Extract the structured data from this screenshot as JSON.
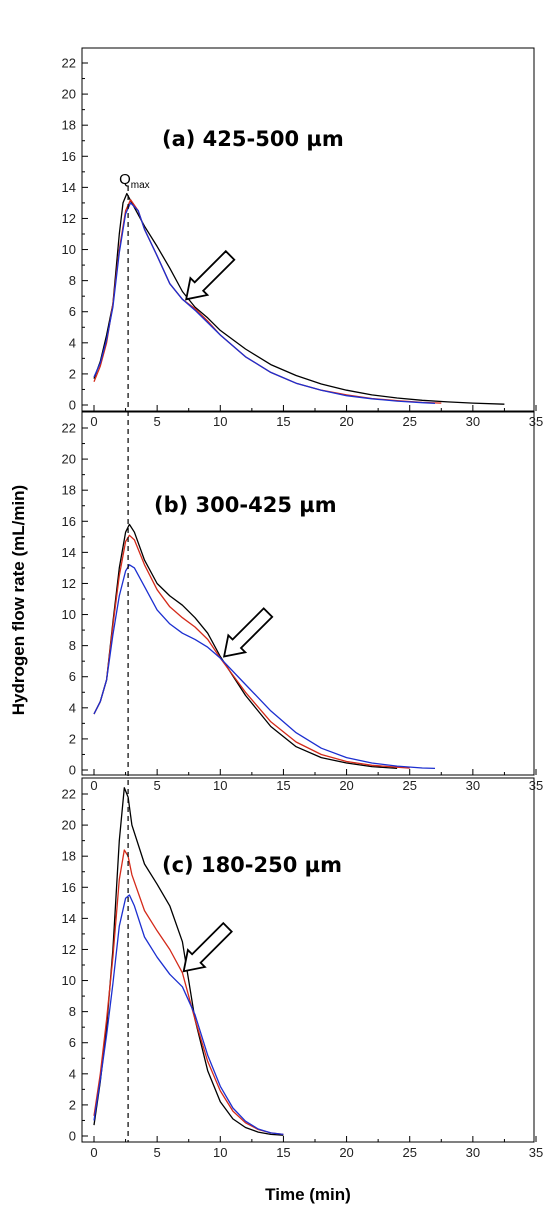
{
  "chart_data": {
    "type": "line",
    "xlabel": "Time (min)",
    "ylabel": "Hydrogen flow  rate (mL/min)",
    "colors": {
      "black": "#000000",
      "red": "#d42a1a",
      "blue": "#1c2fd0"
    },
    "annotation": {
      "label": "Q",
      "subscript": "max",
      "x": 2.7
    },
    "panels": [
      {
        "title": "(a) 425-500 µm",
        "xlim": [
          0,
          35
        ],
        "ylim": [
          0,
          22
        ],
        "xticks": [
          0,
          5,
          10,
          15,
          20,
          25,
          30,
          35
        ],
        "yticks": [
          0,
          2,
          4,
          6,
          8,
          10,
          12,
          14,
          16,
          18,
          20,
          22
        ],
        "arrow_at": [
          7.3,
          6.8
        ],
        "series": [
          {
            "color": "black",
            "points": [
              [
                0,
                1.7
              ],
              [
                0.5,
                2.8
              ],
              [
                1,
                4.5
              ],
              [
                1.5,
                6.5
              ],
              [
                2,
                11
              ],
              [
                2.3,
                13
              ],
              [
                2.6,
                13.6
              ],
              [
                3,
                13
              ],
              [
                4,
                11.5
              ],
              [
                5,
                10.2
              ],
              [
                6,
                8.8
              ],
              [
                7,
                7.3
              ],
              [
                8,
                6.3
              ],
              [
                9,
                5.6
              ],
              [
                10,
                4.8
              ],
              [
                12,
                3.6
              ],
              [
                14,
                2.6
              ],
              [
                16,
                1.9
              ],
              [
                18,
                1.35
              ],
              [
                20,
                0.95
              ],
              [
                22,
                0.65
              ],
              [
                24,
                0.45
              ],
              [
                26,
                0.3
              ],
              [
                28,
                0.2
              ],
              [
                30,
                0.12
              ],
              [
                32.5,
                0.05
              ]
            ]
          },
          {
            "color": "red",
            "points": [
              [
                0,
                1.5
              ],
              [
                0.5,
                2.5
              ],
              [
                1,
                4
              ],
              [
                1.5,
                6.5
              ],
              [
                2,
                10
              ],
              [
                2.5,
                12.5
              ],
              [
                2.9,
                13.2
              ],
              [
                3.5,
                12.5
              ],
              [
                4,
                11.3
              ],
              [
                5,
                9.6
              ],
              [
                6,
                7.8
              ],
              [
                7,
                6.8
              ],
              [
                8,
                6.2
              ],
              [
                9,
                5.4
              ],
              [
                10,
                4.5
              ],
              [
                12,
                3.1
              ],
              [
                14,
                2.1
              ],
              [
                16,
                1.4
              ],
              [
                18,
                0.95
              ],
              [
                20,
                0.65
              ],
              [
                22,
                0.42
              ],
              [
                24,
                0.28
              ],
              [
                26,
                0.17
              ],
              [
                27.5,
                0.12
              ]
            ]
          },
          {
            "color": "blue",
            "points": [
              [
                0,
                1.8
              ],
              [
                0.5,
                2.7
              ],
              [
                1,
                4.2
              ],
              [
                1.5,
                6.3
              ],
              [
                2,
                9.8
              ],
              [
                2.5,
                12.3
              ],
              [
                2.9,
                13
              ],
              [
                3.5,
                12.5
              ],
              [
                4,
                11.3
              ],
              [
                5,
                9.6
              ],
              [
                6,
                7.8
              ],
              [
                7,
                6.8
              ],
              [
                8,
                6.1
              ],
              [
                9,
                5.3
              ],
              [
                10,
                4.5
              ],
              [
                12,
                3.1
              ],
              [
                14,
                2.1
              ],
              [
                16,
                1.4
              ],
              [
                18,
                0.95
              ],
              [
                20,
                0.6
              ],
              [
                22,
                0.4
              ],
              [
                24,
                0.25
              ],
              [
                26,
                0.15
              ],
              [
                27,
                0.1
              ]
            ]
          }
        ]
      },
      {
        "title": "(b) 300-425 µm",
        "xlim": [
          0,
          35
        ],
        "ylim": [
          0,
          22
        ],
        "xticks": [
          0,
          5,
          10,
          15,
          20,
          25,
          30,
          35
        ],
        "yticks": [
          0,
          2,
          4,
          6,
          8,
          10,
          12,
          14,
          16,
          18,
          20,
          22
        ],
        "arrow_at": [
          10.3,
          7.3
        ],
        "series": [
          {
            "color": "black",
            "points": [
              [
                0,
                3.6
              ],
              [
                0.5,
                4.4
              ],
              [
                1,
                5.8
              ],
              [
                1.5,
                9.5
              ],
              [
                2,
                13
              ],
              [
                2.5,
                15.3
              ],
              [
                2.8,
                15.8
              ],
              [
                3.2,
                15.3
              ],
              [
                4,
                13.5
              ],
              [
                5,
                12
              ],
              [
                6,
                11.2
              ],
              [
                7,
                10.6
              ],
              [
                8,
                9.8
              ],
              [
                9,
                8.8
              ],
              [
                10,
                7.3
              ],
              [
                12,
                4.8
              ],
              [
                14,
                2.8
              ],
              [
                16,
                1.5
              ],
              [
                18,
                0.8
              ],
              [
                20,
                0.45
              ],
              [
                22,
                0.22
              ],
              [
                24,
                0.1
              ]
            ]
          },
          {
            "color": "red",
            "points": [
              [
                0,
                3.6
              ],
              [
                0.5,
                4.4
              ],
              [
                1,
                5.8
              ],
              [
                1.5,
                9.3
              ],
              [
                2,
                12.5
              ],
              [
                2.5,
                14.7
              ],
              [
                2.8,
                15.1
              ],
              [
                3.2,
                14.8
              ],
              [
                4,
                13.2
              ],
              [
                5,
                11.6
              ],
              [
                6,
                10.5
              ],
              [
                7,
                9.8
              ],
              [
                8,
                9.2
              ],
              [
                9,
                8.4
              ],
              [
                10,
                7.2
              ],
              [
                12,
                5.0
              ],
              [
                14,
                3.1
              ],
              [
                16,
                1.8
              ],
              [
                18,
                1.0
              ],
              [
                20,
                0.55
              ],
              [
                22,
                0.3
              ],
              [
                24,
                0.18
              ],
              [
                25,
                0.12
              ]
            ]
          },
          {
            "color": "blue",
            "points": [
              [
                0,
                3.6
              ],
              [
                0.5,
                4.4
              ],
              [
                1,
                5.8
              ],
              [
                1.5,
                8.7
              ],
              [
                2,
                11.2
              ],
              [
                2.5,
                12.8
              ],
              [
                2.8,
                13.2
              ],
              [
                3.2,
                13
              ],
              [
                4,
                11.8
              ],
              [
                5,
                10.3
              ],
              [
                6,
                9.4
              ],
              [
                7,
                8.8
              ],
              [
                8,
                8.4
              ],
              [
                9,
                7.9
              ],
              [
                10,
                7.2
              ],
              [
                12,
                5.5
              ],
              [
                14,
                3.8
              ],
              [
                16,
                2.4
              ],
              [
                18,
                1.4
              ],
              [
                20,
                0.8
              ],
              [
                22,
                0.45
              ],
              [
                24,
                0.25
              ],
              [
                26,
                0.13
              ],
              [
                27,
                0.1
              ]
            ]
          }
        ]
      },
      {
        "title": "(c) 180-250 µm",
        "xlim": [
          0,
          35
        ],
        "ylim": [
          0,
          22
        ],
        "xticks": [
          0,
          5,
          10,
          15,
          20,
          25,
          30,
          35
        ],
        "yticks": [
          0,
          2,
          4,
          6,
          8,
          10,
          12,
          14,
          16,
          18,
          20,
          22
        ],
        "arrow_at": [
          7.1,
          10.6
        ],
        "series": [
          {
            "color": "black",
            "points": [
              [
                0,
                0.7
              ],
              [
                0.5,
                3.5
              ],
              [
                1,
                7
              ],
              [
                1.5,
                12
              ],
              [
                2,
                19
              ],
              [
                2.4,
                22.4
              ],
              [
                2.7,
                21.8
              ],
              [
                3,
                20
              ],
              [
                4,
                17.5
              ],
              [
                5,
                16.2
              ],
              [
                6,
                14.8
              ],
              [
                7,
                12.5
              ],
              [
                8,
                7.5
              ],
              [
                9,
                4.2
              ],
              [
                10,
                2.2
              ],
              [
                11,
                1.1
              ],
              [
                12,
                0.55
              ],
              [
                13,
                0.25
              ],
              [
                14,
                0.1
              ],
              [
                15,
                0.05
              ]
            ]
          },
          {
            "color": "red",
            "points": [
              [
                0,
                1.3
              ],
              [
                0.5,
                4
              ],
              [
                1,
                7.5
              ],
              [
                1.5,
                11.5
              ],
              [
                2,
                16.5
              ],
              [
                2.4,
                18.4
              ],
              [
                2.7,
                18
              ],
              [
                3,
                16.8
              ],
              [
                4,
                14.5
              ],
              [
                5,
                13.2
              ],
              [
                6,
                12
              ],
              [
                7,
                10.5
              ],
              [
                8,
                7.5
              ],
              [
                9,
                4.8
              ],
              [
                10,
                2.9
              ],
              [
                11,
                1.6
              ],
              [
                12,
                0.85
              ],
              [
                13,
                0.42
              ],
              [
                14,
                0.2
              ],
              [
                15,
                0.1
              ]
            ]
          },
          {
            "color": "blue",
            "points": [
              [
                0,
                1.0
              ],
              [
                0.5,
                3.6
              ],
              [
                1,
                6.5
              ],
              [
                1.5,
                9.8
              ],
              [
                2,
                13.5
              ],
              [
                2.5,
                15.3
              ],
              [
                2.8,
                15.5
              ],
              [
                3.2,
                14.8
              ],
              [
                4,
                12.8
              ],
              [
                5,
                11.5
              ],
              [
                6,
                10.4
              ],
              [
                7,
                9.6
              ],
              [
                8,
                7.8
              ],
              [
                9,
                5.2
              ],
              [
                10,
                3.2
              ],
              [
                11,
                1.8
              ],
              [
                12,
                0.95
              ],
              [
                13,
                0.45
              ],
              [
                14,
                0.2
              ],
              [
                15,
                0.1
              ]
            ]
          }
        ]
      }
    ]
  }
}
